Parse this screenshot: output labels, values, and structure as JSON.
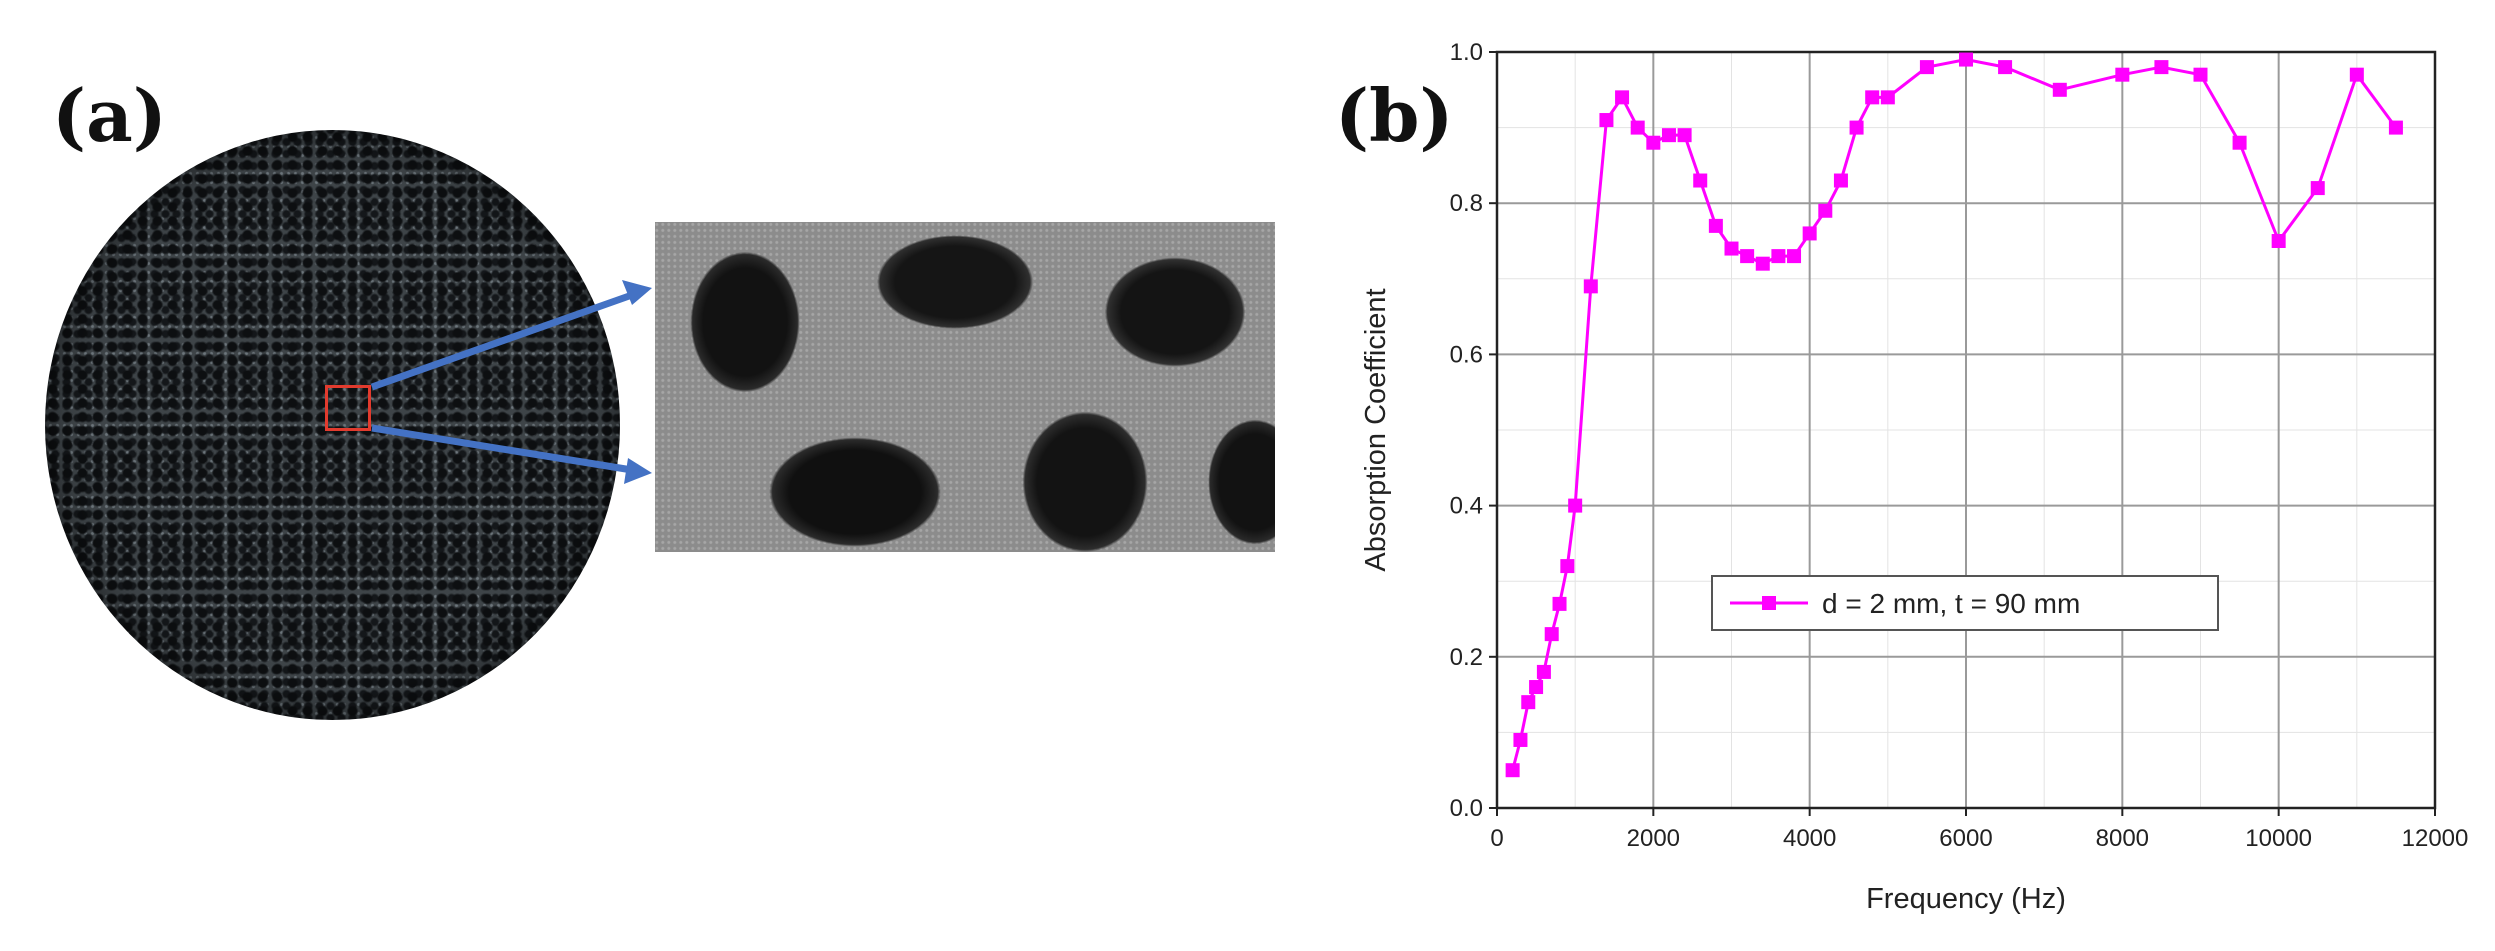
{
  "panels": {
    "a_label": "(a)",
    "b_label": "(b)"
  },
  "colors": {
    "series": "#ff00ff",
    "zoom_box": "#e23b2e",
    "arrow": "#4472c4"
  },
  "chart_data": {
    "type": "line",
    "xlabel": "Frequency (Hz)",
    "ylabel": "Absorption Coefficient",
    "xlim": [
      0,
      12000
    ],
    "ylim": [
      0.0,
      1.0
    ],
    "xticks": [
      0,
      2000,
      4000,
      6000,
      8000,
      10000,
      12000
    ],
    "yticks": [
      0.0,
      0.2,
      0.4,
      0.6,
      0.8,
      1.0
    ],
    "ytick_labels": [
      "0.0",
      "0.2",
      "0.4",
      "0.6",
      "0.8",
      "1.0"
    ],
    "grid": true,
    "legend_position": "center-right",
    "series": [
      {
        "name": "d = 2 mm, t = 90 mm",
        "marker": "square",
        "x": [
          200,
          300,
          400,
          500,
          600,
          700,
          800,
          900,
          1000,
          1200,
          1400,
          1600,
          1800,
          2000,
          2200,
          2400,
          2600,
          2800,
          3000,
          3200,
          3400,
          3600,
          3800,
          4000,
          4200,
          4400,
          4600,
          4800,
          5000,
          5500,
          6000,
          6500,
          7200,
          8000,
          8500,
          9000,
          9500,
          10000,
          10500,
          11000,
          11500
        ],
        "y": [
          0.05,
          0.09,
          0.14,
          0.16,
          0.18,
          0.23,
          0.27,
          0.32,
          0.4,
          0.69,
          0.91,
          0.94,
          0.9,
          0.88,
          0.89,
          0.89,
          0.83,
          0.77,
          0.74,
          0.73,
          0.72,
          0.73,
          0.73,
          0.76,
          0.79,
          0.83,
          0.9,
          0.94,
          0.94,
          0.98,
          0.99,
          0.98,
          0.95,
          0.97,
          0.98,
          0.97,
          0.88,
          0.75,
          0.82,
          0.97,
          0.9
        ]
      }
    ]
  }
}
